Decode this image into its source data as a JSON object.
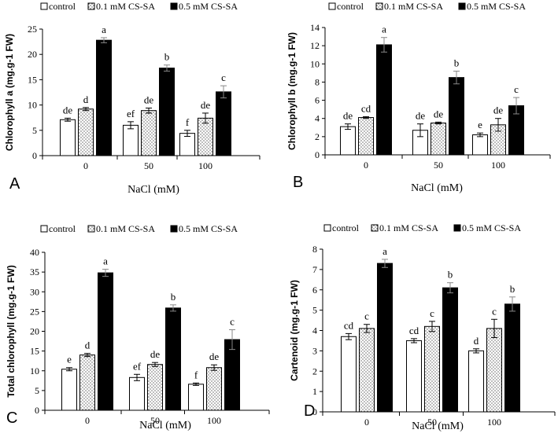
{
  "legend_swatch_fills": {
    "control": "#ffffff",
    "0.1 mM CS-SA": "#dcdcdc",
    "0.5 mM CS-SA": "#000000"
  },
  "chart_data": [
    {
      "type": "bar",
      "panel_label": "A",
      "title": "",
      "categories": [
        "0",
        "50",
        "100"
      ],
      "xlabel": "NaCl (mM)",
      "ylabel": "Chlorophyll a (mg.g-1 FW)",
      "ylim": [
        0,
        25
      ],
      "yticks": [
        "0",
        "5",
        "10",
        "15",
        "20",
        "25"
      ],
      "legend": [
        "control",
        "0.1 mM CS-SA",
        "0.5 mM CS-SA"
      ],
      "legend_position": "top",
      "series": [
        {
          "name": "control",
          "values": [
            7.1,
            6.0,
            4.4
          ],
          "errors": [
            0.3,
            0.7,
            0.6
          ],
          "letters": [
            "de",
            "ef",
            "f"
          ]
        },
        {
          "name": "0.1 mM CS-SA",
          "values": [
            9.2,
            8.9,
            7.4
          ],
          "errors": [
            0.3,
            0.5,
            1.0
          ],
          "letters": [
            "d",
            "de",
            "de"
          ]
        },
        {
          "name": "0.5 mM CS-SA",
          "values": [
            22.8,
            17.3,
            12.6
          ],
          "errors": [
            0.5,
            0.6,
            1.2
          ],
          "letters": [
            "a",
            "b",
            "c"
          ]
        }
      ]
    },
    {
      "type": "bar",
      "panel_label": "B",
      "title": "",
      "categories": [
        "0",
        "50",
        "100"
      ],
      "xlabel": "NaCl (mM)",
      "ylabel": "Chlorophyll b (mg.g-1 FW)",
      "ylim": [
        0,
        14
      ],
      "yticks": [
        "0",
        "2",
        "4",
        "6",
        "8",
        "10",
        "12",
        "14"
      ],
      "legend": [
        "control",
        "0.1 mM CS-SA",
        "0.5 mM CS-SA"
      ],
      "legend_position": "top",
      "series": [
        {
          "name": "control",
          "values": [
            3.1,
            2.7,
            2.2
          ],
          "errors": [
            0.3,
            0.7,
            0.2
          ],
          "letters": [
            "de",
            "de",
            "e"
          ]
        },
        {
          "name": "0.1 mM CS-SA",
          "values": [
            4.1,
            3.5,
            3.3
          ],
          "errors": [
            0.1,
            0.1,
            0.7
          ],
          "letters": [
            "cd",
            "de",
            "de"
          ]
        },
        {
          "name": "0.5 mM CS-SA",
          "values": [
            12.1,
            8.5,
            5.4
          ],
          "errors": [
            0.8,
            0.7,
            0.9
          ],
          "letters": [
            "a",
            "b",
            "c"
          ]
        }
      ]
    },
    {
      "type": "bar",
      "panel_label": "C",
      "title": "",
      "categories": [
        "0",
        "50",
        "100"
      ],
      "xlabel": "NaCl (mM)",
      "ylabel": "Total chlorophyll (mg.g-1 FW)",
      "ylim": [
        0,
        40
      ],
      "yticks": [
        "0",
        "5",
        "10",
        "15",
        "20",
        "25",
        "30",
        "35",
        "40"
      ],
      "legend": [
        "control",
        "0.1 mM CS-SA",
        "0.5 mM CS-SA"
      ],
      "legend_position": "top",
      "series": [
        {
          "name": "control",
          "values": [
            10.4,
            8.3,
            6.6
          ],
          "errors": [
            0.4,
            0.8,
            0.3
          ],
          "letters": [
            "e",
            "ef",
            "f"
          ]
        },
        {
          "name": "0.1 mM CS-SA",
          "values": [
            14.0,
            11.6,
            10.8
          ],
          "errors": [
            0.4,
            0.5,
            0.7
          ],
          "letters": [
            "d",
            "de",
            "de"
          ]
        },
        {
          "name": "0.5 mM CS-SA",
          "values": [
            34.8,
            25.9,
            17.9
          ],
          "errors": [
            0.9,
            0.8,
            2.5
          ],
          "letters": [
            "a",
            "b",
            "c"
          ]
        }
      ]
    },
    {
      "type": "bar",
      "panel_label": "D",
      "title": "",
      "categories": [
        "0",
        "50",
        "100"
      ],
      "xlabel": "NaCl (mM)",
      "ylabel": "Cartenoid (mg.g-1 FW)",
      "ylim": [
        0,
        8
      ],
      "yticks": [
        "0",
        "1",
        "2",
        "3",
        "4",
        "5",
        "6",
        "7",
        "8"
      ],
      "legend": [
        "control",
        "0.1 mM CS-SA",
        "0.5 mM CS-SA"
      ],
      "legend_position": "top",
      "series": [
        {
          "name": "control",
          "values": [
            3.7,
            3.5,
            3.0
          ],
          "errors": [
            0.15,
            0.1,
            0.1
          ],
          "letters": [
            "cd",
            "cd",
            "d"
          ]
        },
        {
          "name": "0.1 mM CS-SA",
          "values": [
            4.1,
            4.2,
            4.1
          ],
          "errors": [
            0.2,
            0.25,
            0.45
          ],
          "letters": [
            "c",
            "c",
            "c"
          ]
        },
        {
          "name": "0.5 mM CS-SA",
          "values": [
            7.3,
            6.1,
            5.3
          ],
          "errors": [
            0.2,
            0.25,
            0.35
          ],
          "letters": [
            "a",
            "b",
            "b"
          ]
        }
      ]
    }
  ]
}
